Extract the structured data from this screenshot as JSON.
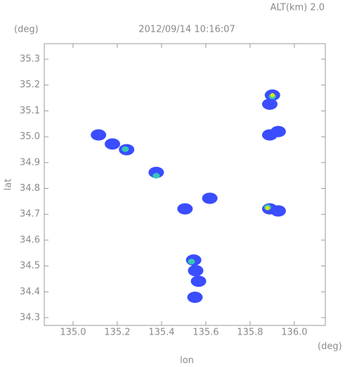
{
  "chart_data": {
    "type": "scatter",
    "title": "2012/09/14 10:16:07",
    "subtitle": "ALT(km)  2.0",
    "x_label": "lon",
    "y_label": "lat",
    "x_unit": "(deg)",
    "y_unit": "(deg)",
    "xlim": [
      134.87,
      136.14
    ],
    "ylim": [
      34.27,
      35.36
    ],
    "xticks": [
      {
        "value": 135.0,
        "label": "135.0"
      },
      135.2,
      135.4,
      135.6,
      135.8,
      {
        "value": 136.0,
        "label": "136.0"
      }
    ],
    "yticks": [
      35.3,
      35.2,
      35.1,
      {
        "value": 35.0,
        "label": "35.0"
      },
      34.9,
      34.8,
      34.7,
      34.6,
      34.5,
      34.4,
      34.3
    ],
    "series": [
      {
        "color": "#3a4dff",
        "x": [
          135.115,
          135.178,
          135.242,
          135.376,
          135.506,
          135.618,
          135.889,
          135.927,
          135.901,
          135.889,
          135.889,
          135.927,
          135.545,
          135.554,
          135.567,
          135.551
        ],
        "y": [
          35.007,
          34.972,
          34.95,
          34.862,
          34.721,
          34.762,
          34.721,
          34.713,
          35.161,
          35.126,
          35.007,
          35.02,
          34.523,
          34.482,
          34.441,
          34.379
        ]
      },
      {
        "color": "#36c8b4",
        "x": [
          135.901,
          135.879,
          135.535,
          135.376,
          135.236
        ],
        "y": [
          35.156,
          34.727,
          34.517,
          34.849,
          34.952
        ]
      },
      {
        "color": "#e6e600",
        "x": [
          135.901,
          135.879
        ],
        "y": [
          35.161,
          34.724
        ]
      }
    ]
  }
}
